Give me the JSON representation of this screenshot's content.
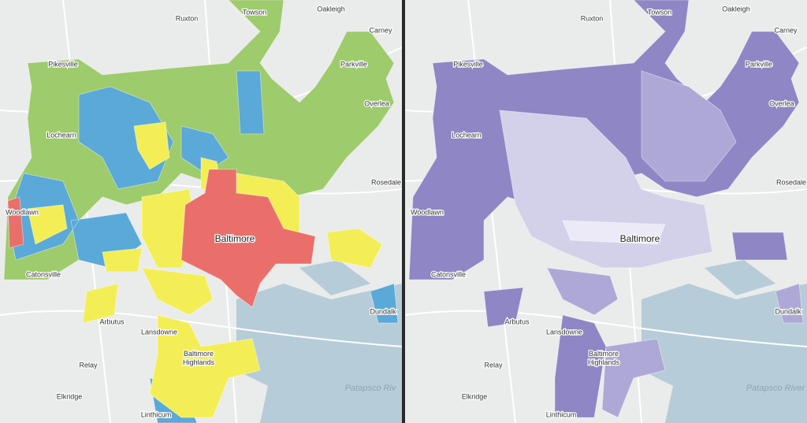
{
  "left_map": {
    "labels": [
      "Towson",
      "Oakleigh",
      "Ruxton",
      "Carney",
      "Pikesville",
      "Parkville",
      "Overlea",
      "Lochearn",
      "Rosedale",
      "Woodlawn",
      "Baltimore",
      "Catonsville",
      "Dundalk",
      "Arbutus",
      "Lansdowne",
      [
        "Baltimore",
        "Highlands"
      ],
      "Relay",
      "Elkridge",
      "Linthicum",
      "Patapsco Riv"
    ]
  },
  "right_map": {
    "labels": [
      "Towson",
      "Oakleigh",
      "Ruxton",
      "Carney",
      "Pikesville",
      "Parkville",
      "Overlea",
      "Lochearn",
      "Rosedale",
      "Woodlawn",
      "Baltimore",
      "Catonsville",
      "Dundalk",
      "Arbutus",
      "Lansdowne",
      [
        "Baltimore",
        "Highlands"
      ],
      "Relay",
      "Elkridge",
      "Linthicum",
      "Patapsco River"
    ]
  }
}
